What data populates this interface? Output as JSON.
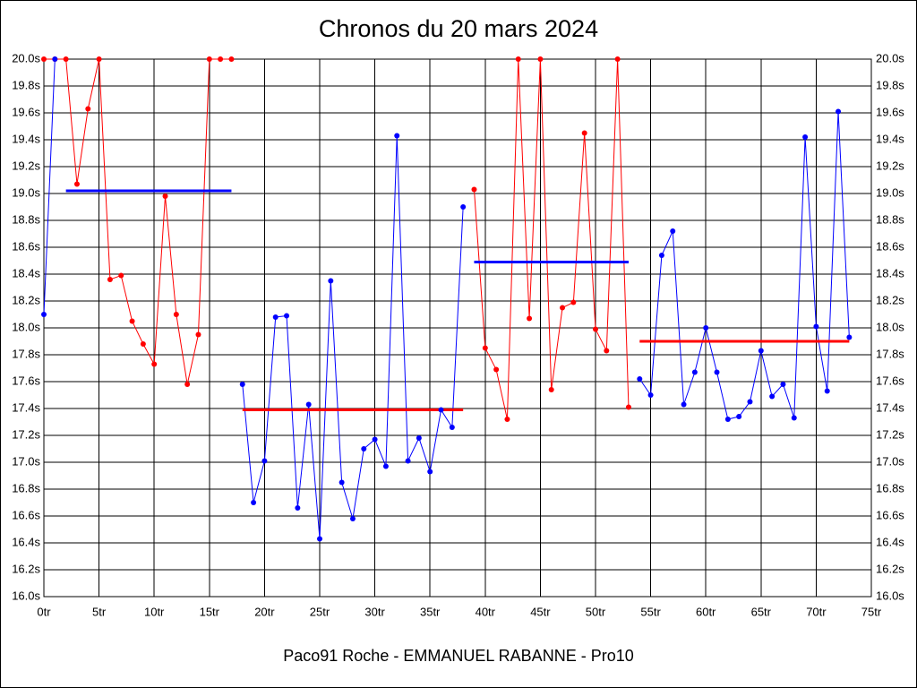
{
  "chart_data": {
    "type": "line",
    "title": "Chronos du 20 mars 2024",
    "footer": "Paco91 Roche - EMMANUEL RABANNE - Pro10",
    "x": [
      0,
      1,
      2,
      3,
      4,
      5,
      6,
      7,
      8,
      9,
      10,
      11,
      12,
      13,
      14,
      15,
      16,
      17,
      18,
      19,
      20,
      21,
      22,
      23,
      24,
      25,
      26,
      27,
      28,
      29,
      30,
      31,
      32,
      33,
      34,
      35,
      36,
      37,
      38,
      39,
      40,
      41,
      42,
      43,
      44,
      45,
      46,
      47,
      48,
      49,
      50,
      51,
      52,
      53,
      54,
      55,
      56,
      57,
      58,
      59,
      60,
      61,
      62,
      63,
      64,
      65,
      66,
      67,
      68,
      69,
      70,
      71,
      72,
      73
    ],
    "series": [
      {
        "color": "#ff0000",
        "values": [
          20.0,
          20.0,
          20.0,
          19.07,
          19.63,
          20.0,
          18.36,
          18.39,
          18.05,
          17.88,
          17.73,
          18.98,
          18.1,
          17.58,
          17.95,
          20.0,
          20.0,
          20.0,
          null,
          null,
          null,
          null,
          null,
          null,
          null,
          null,
          null,
          null,
          null,
          null,
          null,
          null,
          null,
          null,
          null,
          null,
          null,
          null,
          null,
          19.03,
          17.85,
          17.69,
          17.32,
          20.0,
          18.07,
          20.0,
          17.54,
          18.15,
          18.19,
          19.45,
          17.99,
          17.83,
          20.0,
          17.41,
          null,
          null,
          null,
          null,
          null,
          null,
          null,
          null,
          null,
          null,
          null,
          null,
          null,
          null,
          null,
          null,
          null,
          null,
          null,
          null
        ]
      },
      {
        "color": "#0000ff",
        "values": [
          18.1,
          20.0,
          null,
          null,
          null,
          null,
          null,
          null,
          null,
          null,
          null,
          null,
          null,
          null,
          null,
          null,
          null,
          null,
          17.58,
          16.7,
          17.01,
          18.08,
          18.09,
          16.66,
          17.43,
          16.43,
          18.35,
          16.85,
          16.58,
          17.1,
          17.17,
          16.97,
          19.43,
          17.01,
          17.18,
          16.93,
          17.39,
          17.26,
          18.9,
          null,
          null,
          null,
          null,
          null,
          null,
          null,
          null,
          null,
          null,
          null,
          null,
          null,
          null,
          null,
          17.62,
          17.5,
          18.54,
          18.72,
          17.43,
          17.67,
          18.0,
          17.67,
          17.32,
          17.34,
          17.45,
          17.83,
          17.49,
          17.58,
          17.33,
          19.42,
          18.01,
          17.53,
          19.61,
          17.93
        ]
      }
    ],
    "mean_lines": [
      {
        "color": "#0000ff",
        "value": 19.02,
        "x_range": [
          2,
          17
        ]
      },
      {
        "color": "#ff0000",
        "value": 17.39,
        "x_range": [
          18,
          38
        ]
      },
      {
        "color": "#0000ff",
        "value": 18.49,
        "x_range": [
          39,
          53
        ]
      },
      {
        "color": "#ff0000",
        "value": 17.9,
        "x_range": [
          54,
          73
        ]
      }
    ],
    "xlim": [
      0,
      75
    ],
    "xticks": [
      {
        "value": 0,
        "label": "0tr"
      },
      {
        "value": 5,
        "label": "5tr"
      },
      {
        "value": 10,
        "label": "10tr"
      },
      {
        "value": 15,
        "label": "15tr"
      },
      {
        "value": 20,
        "label": "20tr"
      },
      {
        "value": 25,
        "label": "25tr"
      },
      {
        "value": 30,
        "label": "30tr"
      },
      {
        "value": 35,
        "label": "35tr"
      },
      {
        "value": 40,
        "label": "40tr"
      },
      {
        "value": 45,
        "label": "45tr"
      },
      {
        "value": 50,
        "label": "50tr"
      },
      {
        "value": 55,
        "label": "55tr"
      },
      {
        "value": 60,
        "label": "60tr"
      },
      {
        "value": 65,
        "label": "65tr"
      },
      {
        "value": 70,
        "label": "70tr"
      },
      {
        "value": 75,
        "label": "75tr"
      }
    ],
    "ylim": [
      16.0,
      20.0
    ],
    "yticks": [
      {
        "value": 16.0,
        "label": "16.0s"
      },
      {
        "value": 16.2,
        "label": "16.2s"
      },
      {
        "value": 16.4,
        "label": "16.4s"
      },
      {
        "value": 16.6,
        "label": "16.6s"
      },
      {
        "value": 16.8,
        "label": "16.8s"
      },
      {
        "value": 17.0,
        "label": "17.0s"
      },
      {
        "value": 17.2,
        "label": "17.2s"
      },
      {
        "value": 17.4,
        "label": "17.4s"
      },
      {
        "value": 17.6,
        "label": "17.6s"
      },
      {
        "value": 17.8,
        "label": "17.8s"
      },
      {
        "value": 18.0,
        "label": "18.0s"
      },
      {
        "value": 18.2,
        "label": "18.2s"
      },
      {
        "value": 18.4,
        "label": "18.4s"
      },
      {
        "value": 18.6,
        "label": "18.6s"
      },
      {
        "value": 18.8,
        "label": "18.8s"
      },
      {
        "value": 19.0,
        "label": "19.0s"
      },
      {
        "value": 19.2,
        "label": "19.2s"
      },
      {
        "value": 19.4,
        "label": "19.4s"
      },
      {
        "value": 19.6,
        "label": "19.6s"
      },
      {
        "value": 19.8,
        "label": "19.8s"
      },
      {
        "value": 20.0,
        "label": "20.0s"
      }
    ],
    "grid": true
  }
}
